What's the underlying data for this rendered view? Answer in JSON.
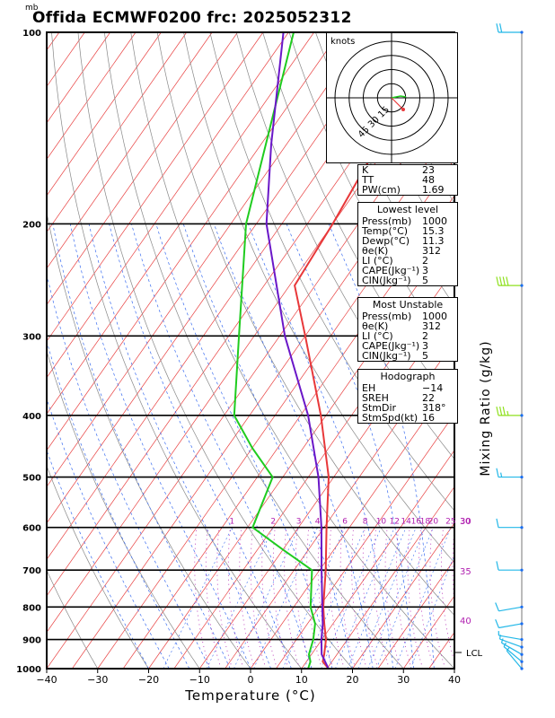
{
  "title": "Offida ECMWF0200 frc: 2025052312",
  "unit_mb": "mb",
  "chart_data": {
    "type": "skew-t",
    "xlabel": "Temperature (°C)",
    "ylabel": "Mixing Ratio (g/kg)",
    "xlim": [
      -40,
      40
    ],
    "ylim": [
      1000,
      100
    ],
    "x_ticks": [
      "−40",
      "−30",
      "−20",
      "−10",
      "0",
      "10",
      "20",
      "30",
      "40"
    ],
    "p_labels": [
      "100",
      "200",
      "300",
      "400",
      "500",
      "600",
      "700",
      "800",
      "900",
      "1000"
    ],
    "mixing_ratio_labels": [
      "1",
      "2",
      "3",
      "4",
      "6",
      "8",
      "10",
      "12",
      "14",
      "16",
      "18",
      "20",
      "25",
      "30"
    ],
    "theta_e_labels": [
      "30",
      "35",
      "40"
    ],
    "lcl_label": "LCL",
    "temperature_profile": [
      {
        "p": 1000,
        "t": 15.3
      },
      {
        "p": 975,
        "t": 13.2
      },
      {
        "p": 950,
        "t": 12.5
      },
      {
        "p": 900,
        "t": 10.8
      },
      {
        "p": 850,
        "t": 8.3
      },
      {
        "p": 800,
        "t": 5.8
      },
      {
        "p": 700,
        "t": 1.2
      },
      {
        "p": 600,
        "t": -4.5
      },
      {
        "p": 500,
        "t": -11
      },
      {
        "p": 400,
        "t": -21
      },
      {
        "p": 300,
        "t": -35
      },
      {
        "p": 250,
        "t": -44
      },
      {
        "p": 200,
        "t": -45
      },
      {
        "p": 150,
        "t": -47
      },
      {
        "p": 100,
        "t": -51
      }
    ],
    "dewpoint_profile": [
      {
        "p": 1000,
        "t": 11.3
      },
      {
        "p": 975,
        "t": 10.8
      },
      {
        "p": 950,
        "t": 9.5
      },
      {
        "p": 900,
        "t": 8.3
      },
      {
        "p": 850,
        "t": 6.5
      },
      {
        "p": 800,
        "t": 3.3
      },
      {
        "p": 700,
        "t": -1.5
      },
      {
        "p": 650,
        "t": -10
      },
      {
        "p": 600,
        "t": -19
      },
      {
        "p": 500,
        "t": -22
      },
      {
        "p": 450,
        "t": -30
      },
      {
        "p": 400,
        "t": -38
      },
      {
        "p": 300,
        "t": -48
      },
      {
        "p": 200,
        "t": -62
      },
      {
        "p": 100,
        "t": -79
      }
    ],
    "parcel_profile": [
      {
        "p": 1000,
        "t": 15.3
      },
      {
        "p": 950,
        "t": 12.0
      },
      {
        "p": 900,
        "t": 9.9
      },
      {
        "p": 850,
        "t": 8.0
      },
      {
        "p": 800,
        "t": 5.6
      },
      {
        "p": 700,
        "t": 0.4
      },
      {
        "p": 600,
        "t": -5.5
      },
      {
        "p": 500,
        "t": -13
      },
      {
        "p": 400,
        "t": -23.5
      },
      {
        "p": 300,
        "t": -39
      },
      {
        "p": 200,
        "t": -58
      },
      {
        "p": 150,
        "t": -68
      },
      {
        "p": 100,
        "t": -81
      }
    ],
    "wind_barbs": [
      {
        "p": 1000,
        "dir": 320,
        "spd": 5
      },
      {
        "p": 975,
        "dir": 310,
        "spd": 5
      },
      {
        "p": 950,
        "dir": 300,
        "spd": 5
      },
      {
        "p": 925,
        "dir": 290,
        "spd": 5
      },
      {
        "p": 900,
        "dir": 280,
        "spd": 5
      },
      {
        "p": 850,
        "dir": 260,
        "spd": 10
      },
      {
        "p": 800,
        "dir": 260,
        "spd": 10
      },
      {
        "p": 700,
        "dir": 270,
        "spd": 10
      },
      {
        "p": 600,
        "dir": 270,
        "spd": 10
      },
      {
        "p": 500,
        "dir": 270,
        "spd": 15
      },
      {
        "p": 400,
        "dir": 270,
        "spd": 35
      },
      {
        "p": 250,
        "dir": 270,
        "spd": 40
      },
      {
        "p": 100,
        "dir": 270,
        "spd": 20
      }
    ],
    "hodograph": {
      "unit_label": "knots",
      "ring_labels": [
        "15",
        "30",
        "45"
      ],
      "stormvector_label": "318 16"
    }
  },
  "indices": [
    {
      "k": "K",
      "v": "23"
    },
    {
      "k": "TT",
      "v": "48"
    },
    {
      "k": "PW(cm)",
      "v": "1.69"
    }
  ],
  "lowest_level": {
    "title": "Lowest level",
    "rows": [
      {
        "k": "Press(mb)",
        "v": "1000"
      },
      {
        "k": "Temp(°C)",
        "v": "15.3"
      },
      {
        "k": "Dewp(°C)",
        "v": "11.3"
      },
      {
        "k": "θe(K)",
        "v": "312"
      },
      {
        "k": "LI (°C)",
        "v": "2"
      },
      {
        "k": "CAPE(Jkg⁻¹)",
        "v": "3"
      },
      {
        "k": "CIN(Jkg⁻¹)",
        "v": "5"
      }
    ]
  },
  "most_unstable": {
    "title": "Most Unstable",
    "rows": [
      {
        "k": "Press(mb)",
        "v": "1000"
      },
      {
        "k": "θe(K)",
        "v": "312"
      },
      {
        "k": "LI (°C)",
        "v": "2"
      },
      {
        "k": "CAPE(Jkg⁻¹)",
        "v": "3"
      },
      {
        "k": "CIN(Jkg⁻¹)",
        "v": "5"
      }
    ]
  },
  "hodograph_box": {
    "title": "Hodograph",
    "rows": [
      {
        "k": "EH",
        "v": "−14"
      },
      {
        "k": "SREH",
        "v": "22"
      },
      {
        "k": "",
        "v": ""
      },
      {
        "k": "StmDir",
        "v": "318°"
      },
      {
        "k": "StmSpd(kt)",
        "v": "16"
      }
    ]
  },
  "colors": {
    "temperature": "#e8383a",
    "dewpoint": "#1fcc1f",
    "parcel": "#6a17c8",
    "isotherm": "#e84040",
    "dry_adiabat": "#888888",
    "moist_adiabat": "#3a6cf0",
    "mixing_ratio": "#3a6cf0",
    "theta_e_dots": "#b01fb0",
    "barb": "#23b8e8"
  }
}
